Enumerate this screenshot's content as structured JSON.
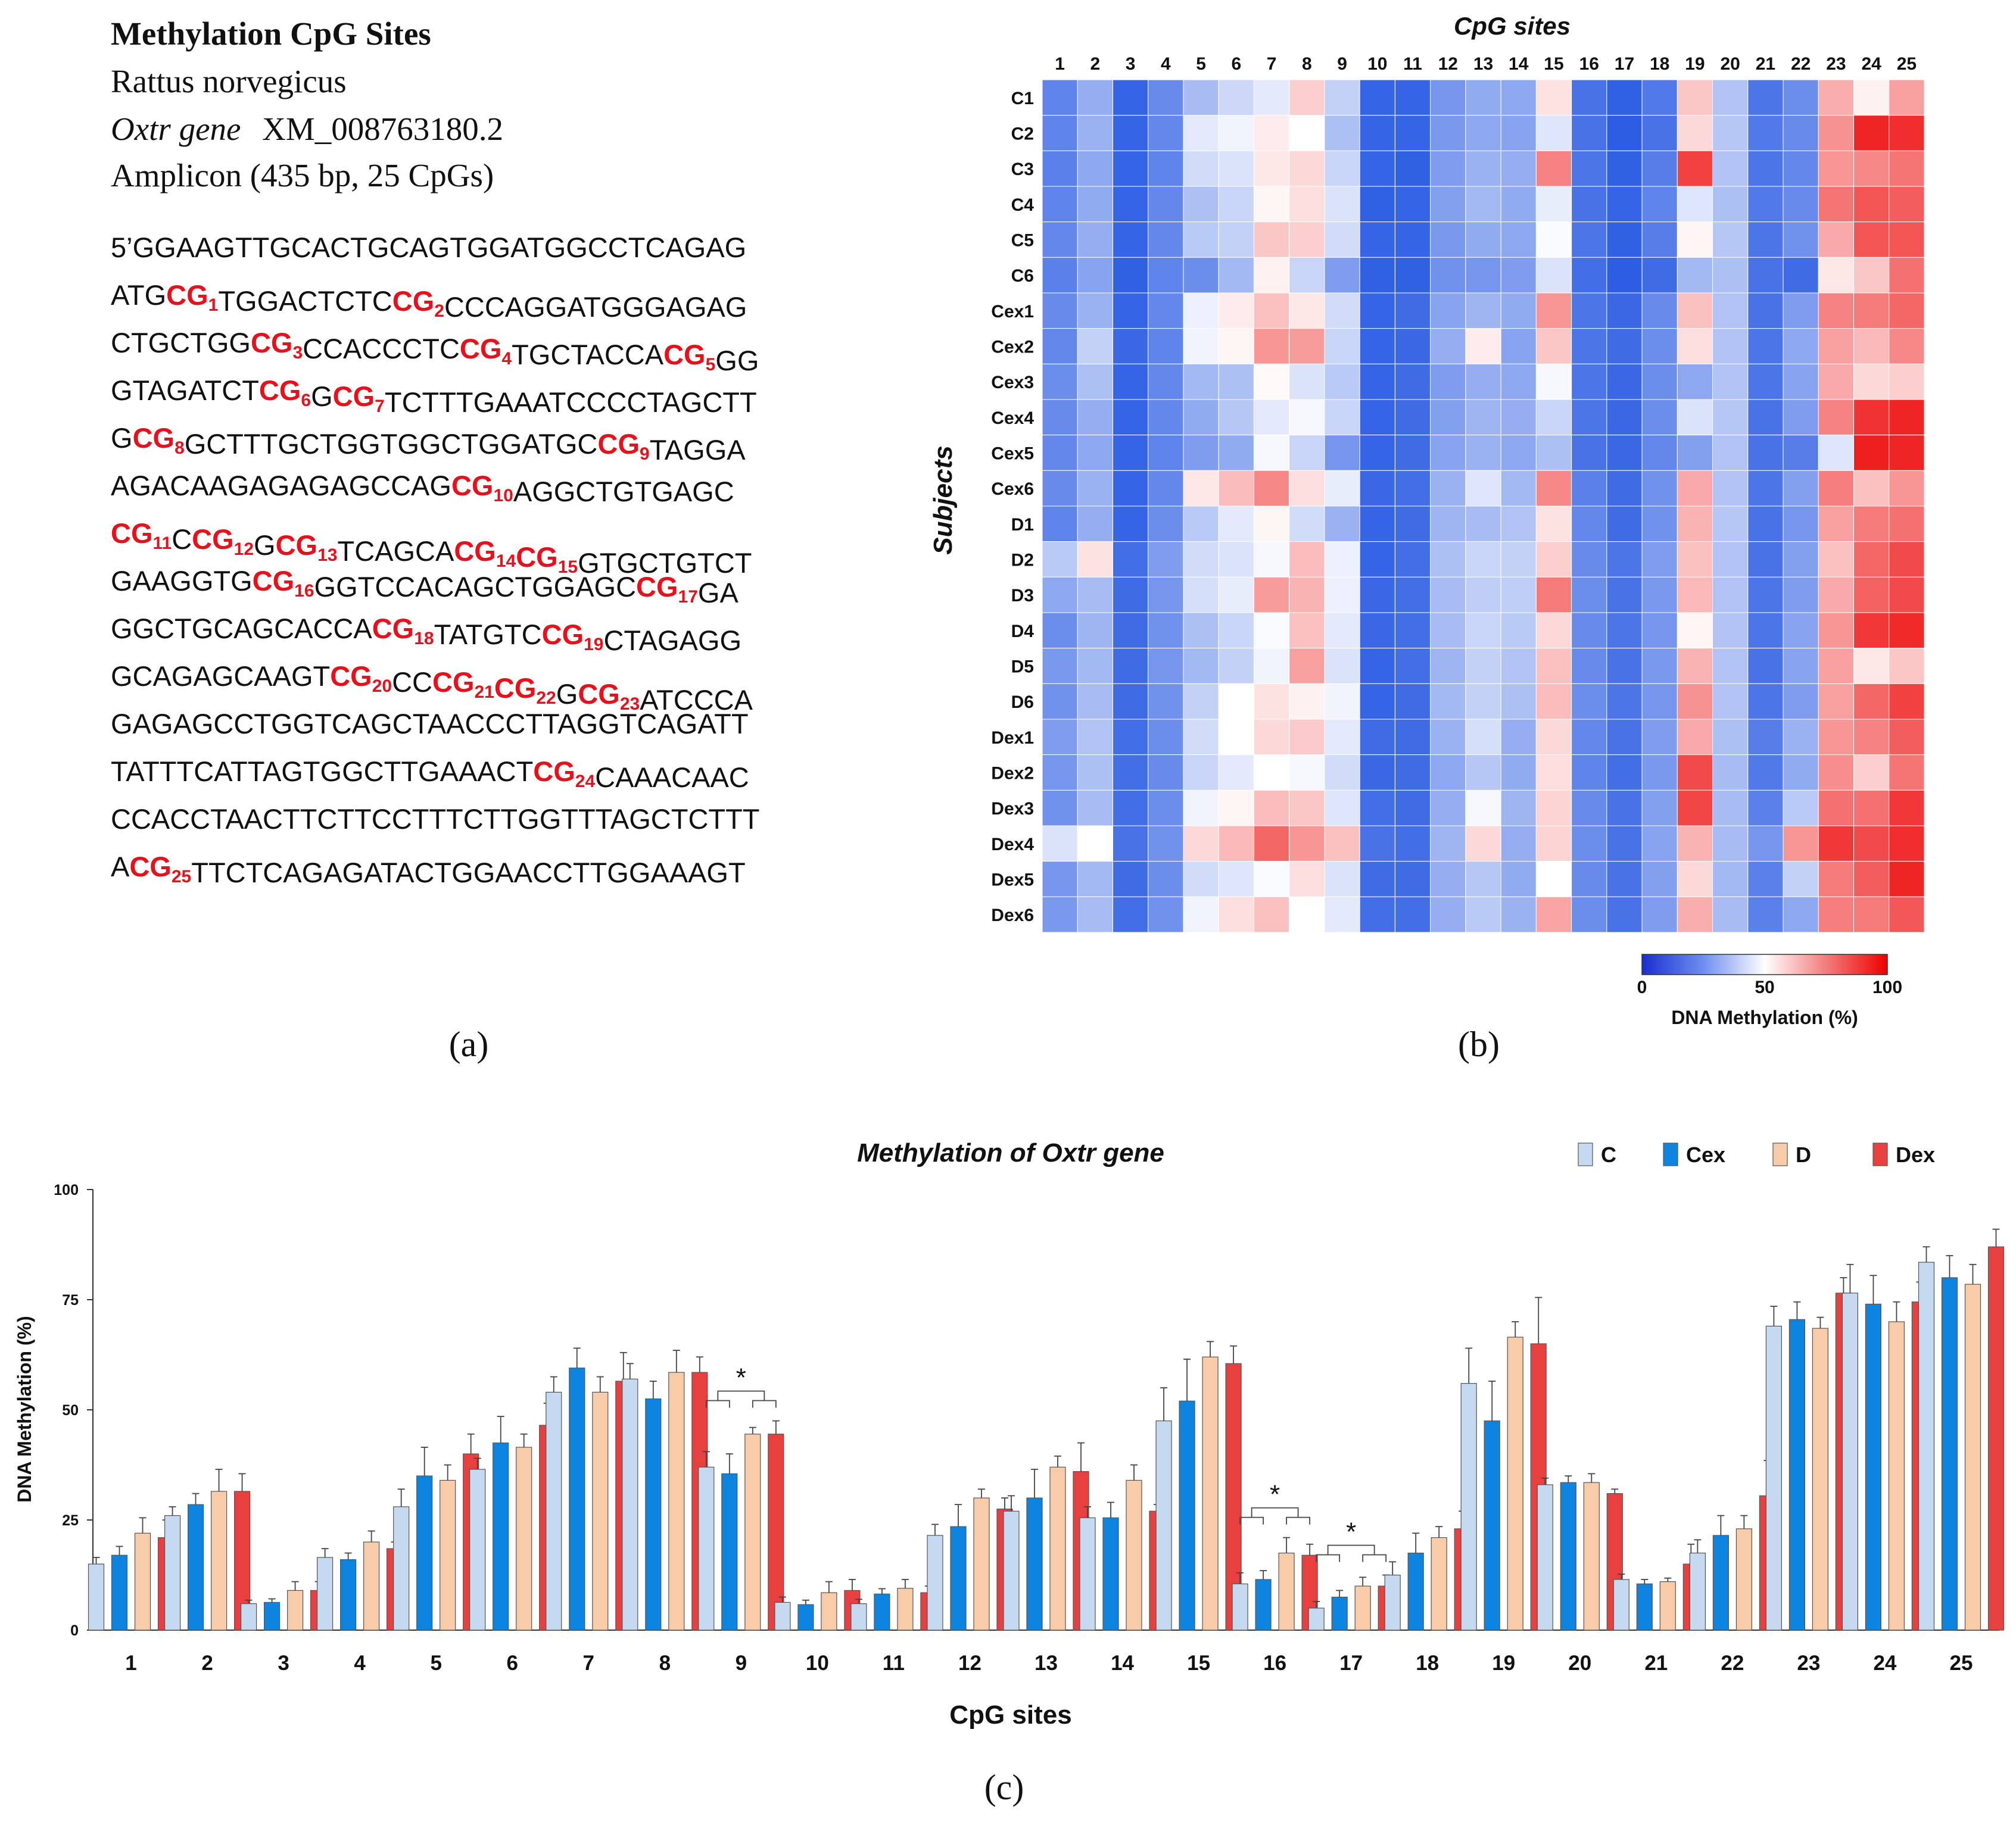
{
  "panel_a": {
    "title": "Methylation CpG Sites",
    "species": "Rattus norvegicus",
    "gene_italic": "Oxtr gene",
    "accession": "XM_008763180.2",
    "amplicon": "Amplicon (435 bp, 25 CpGs)",
    "caption": "(a)",
    "sequence_lines": [
      [
        {
          "t": "5’GGAAGTTGCACTGCAGTGGATGGCCTCAGAG"
        }
      ],
      [
        {
          "t": "ATG"
        },
        {
          "cg": "CG",
          "n": "1"
        },
        {
          "t": "TGGACTCTC"
        },
        {
          "cg": "CG",
          "n": "2"
        },
        {
          "t": "CCCAGGATGGGAGAG"
        }
      ],
      [
        {
          "t": "CTGCTGG"
        },
        {
          "cg": "CG",
          "n": "3"
        },
        {
          "t": "CCACCCTC"
        },
        {
          "cg": "CG",
          "n": "4"
        },
        {
          "t": "TGCTACCA"
        },
        {
          "cg": "CG",
          "n": "5"
        },
        {
          "t": "GG"
        }
      ],
      [
        {
          "t": "GTAGATCT"
        },
        {
          "cg": "CG",
          "n": "6"
        },
        {
          "t": "G"
        },
        {
          "cg": "CG",
          "n": "7"
        },
        {
          "t": "TCTTTGAAATCCCCTAGCTT"
        }
      ],
      [
        {
          "t": "G"
        },
        {
          "cg": "CG",
          "n": "8"
        },
        {
          "t": "GCTTTGCTGGTGGCTGGATGC"
        },
        {
          "cg": "CG",
          "n": "9"
        },
        {
          "t": "TAGGA"
        }
      ],
      [
        {
          "t": "AGACAAGAGAGAGCCAG"
        },
        {
          "cg": "CG",
          "n": "10"
        },
        {
          "t": "AGGCTGTGAGC"
        }
      ],
      [
        {
          "cg": "CG",
          "n": "11"
        },
        {
          "t": "C"
        },
        {
          "cg": "CG",
          "n": "12"
        },
        {
          "t": "G"
        },
        {
          "cg": "CG",
          "n": "13"
        },
        {
          "t": "TCAGCA"
        },
        {
          "cg": "CG",
          "n": "14"
        },
        {
          "cg": "CG",
          "n": "15"
        },
        {
          "t": "GTGCTGTCT"
        }
      ],
      [
        {
          "t": "GAAGGTG"
        },
        {
          "cg": "CG",
          "n": "16"
        },
        {
          "t": "GGTCCACAGCTGGAGC"
        },
        {
          "cg": "CG",
          "n": "17"
        },
        {
          "t": "GA"
        }
      ],
      [
        {
          "t": "GGCTGCAGCACCA"
        },
        {
          "cg": "CG",
          "n": "18"
        },
        {
          "t": "TATGTC"
        },
        {
          "cg": "CG",
          "n": "19"
        },
        {
          "t": "CTAGAGG"
        }
      ],
      [
        {
          "t": "GCAGAGCAAGT"
        },
        {
          "cg": "CG",
          "n": "20"
        },
        {
          "t": "CC"
        },
        {
          "cg": "CG",
          "n": "21"
        },
        {
          "cg": "CG",
          "n": "22"
        },
        {
          "t": "G"
        },
        {
          "cg": "CG",
          "n": "23"
        },
        {
          "t": "ATCCCA"
        }
      ],
      [
        {
          "t": "GAGAGCCTGGTCAGCTAACCCTTAGGTCAGATT"
        }
      ],
      [
        {
          "t": "TATTTCATTAGTGGCTTGAAACT"
        },
        {
          "cg": "CG",
          "n": "24"
        },
        {
          "t": "CAAACAAC"
        }
      ],
      [
        {
          "t": "CCACCTAACTTCTTCCTTTCTTGGTTTAGCTCTTT"
        }
      ],
      [
        {
          "t": "A"
        },
        {
          "cg": "CG",
          "n": "25"
        },
        {
          "t": "TTCTCAGAGATACTGGAACCTTGGAAAGT"
        }
      ]
    ]
  },
  "chart_data": [
    {
      "type": "heatmap",
      "caption": "(b)",
      "title": "CpG sites",
      "ylabel": "Subjects",
      "colorbar_label": "DNA Methylation (%)",
      "colorbar_ticks": [
        "0",
        "50",
        "100"
      ],
      "color_scale": {
        "low": "#1a4fe0",
        "mid": "#ffffff",
        "high": "#ee1111",
        "range": [
          0,
          100
        ]
      },
      "columns": [
        "1",
        "2",
        "3",
        "4",
        "5",
        "6",
        "7",
        "8",
        "9",
        "10",
        "11",
        "12",
        "13",
        "14",
        "15",
        "16",
        "17",
        "18",
        "19",
        "20",
        "21",
        "22",
        "23",
        "24",
        "25"
      ],
      "rows": [
        "C1",
        "C2",
        "C3",
        "C4",
        "C5",
        "C6",
        "Cex1",
        "Cex2",
        "Cex3",
        "Cex4",
        "Cex5",
        "Cex6",
        "D1",
        "D2",
        "D3",
        "D4",
        "D5",
        "D6",
        "Dex1",
        "Dex2",
        "Dex3",
        "Dex4",
        "Dex5",
        "Dex6"
      ],
      "values": [
        [
          15,
          27,
          6,
          17,
          31,
          39,
          44,
          60,
          37,
          6,
          6,
          20,
          26,
          25,
          56,
          10,
          5,
          12,
          62,
          33,
          11,
          18,
          67,
          53,
          70
        ],
        [
          15,
          28,
          6,
          16,
          44,
          47,
          54,
          50,
          32,
          6,
          6,
          21,
          25,
          24,
          43,
          10,
          4,
          10,
          58,
          34,
          12,
          17,
          73,
          96,
          94
        ],
        [
          14,
          25,
          6,
          15,
          40,
          42,
          55,
          58,
          38,
          6,
          5,
          22,
          28,
          27,
          76,
          11,
          5,
          13,
          90,
          33,
          11,
          16,
          72,
          75,
          79
        ],
        [
          15,
          26,
          6,
          16,
          32,
          38,
          52,
          57,
          42,
          5,
          6,
          23,
          30,
          26,
          45,
          10,
          6,
          15,
          43,
          32,
          12,
          17,
          79,
          86,
          84
        ],
        [
          16,
          27,
          6,
          16,
          35,
          37,
          62,
          60,
          40,
          6,
          6,
          21,
          26,
          25,
          49,
          11,
          5,
          13,
          52,
          34,
          11,
          19,
          68,
          86,
          86
        ],
        [
          14,
          24,
          5,
          15,
          18,
          30,
          53,
          38,
          22,
          5,
          5,
          19,
          20,
          22,
          42,
          9,
          4,
          8,
          30,
          32,
          10,
          8,
          55,
          62,
          80
        ],
        [
          17,
          28,
          6,
          16,
          46,
          54,
          63,
          55,
          40,
          6,
          8,
          24,
          29,
          26,
          72,
          11,
          7,
          17,
          63,
          33,
          10,
          22,
          76,
          78,
          82
        ],
        [
          16,
          37,
          7,
          15,
          47,
          52,
          72,
          71,
          38,
          6,
          7,
          27,
          54,
          24,
          62,
          11,
          8,
          18,
          57,
          33,
          11,
          25,
          70,
          65,
          75
        ],
        [
          18,
          32,
          6,
          16,
          30,
          32,
          51,
          42,
          35,
          6,
          8,
          22,
          27,
          25,
          48,
          11,
          7,
          18,
          25,
          33,
          11,
          24,
          68,
          58,
          60
        ],
        [
          17,
          27,
          6,
          16,
          26,
          34,
          44,
          48,
          38,
          6,
          8,
          23,
          29,
          27,
          38,
          11,
          7,
          18,
          42,
          34,
          10,
          22,
          76,
          93,
          96
        ],
        [
          16,
          25,
          6,
          15,
          22,
          26,
          48,
          38,
          20,
          6,
          8,
          24,
          28,
          25,
          32,
          10,
          7,
          16,
          23,
          33,
          10,
          13,
          43,
          97,
          96
        ],
        [
          17,
          28,
          6,
          16,
          55,
          64,
          75,
          57,
          45,
          7,
          9,
          28,
          43,
          30,
          75,
          14,
          8,
          19,
          68,
          33,
          11,
          23,
          77,
          63,
          72
        ],
        [
          15,
          27,
          6,
          18,
          35,
          44,
          52,
          40,
          28,
          6,
          8,
          29,
          31,
          33,
          56,
          16,
          8,
          19,
          66,
          34,
          10,
          20,
          70,
          78,
          80
        ],
        [
          35,
          56,
          9,
          22,
          40,
          42,
          48,
          64,
          46,
          6,
          9,
          32,
          38,
          37,
          60,
          17,
          11,
          22,
          63,
          33,
          10,
          23,
          63,
          82,
          88
        ],
        [
          25,
          31,
          8,
          20,
          41,
          45,
          71,
          66,
          46,
          7,
          9,
          31,
          36,
          36,
          78,
          18,
          10,
          21,
          65,
          33,
          11,
          22,
          68,
          83,
          88
        ],
        [
          18,
          29,
          8,
          19,
          32,
          38,
          49,
          63,
          44,
          7,
          9,
          31,
          38,
          35,
          58,
          17,
          11,
          20,
          52,
          33,
          11,
          24,
          72,
          92,
          95
        ],
        [
          21,
          30,
          8,
          20,
          30,
          37,
          47,
          70,
          42,
          6,
          9,
          29,
          37,
          33,
          63,
          17,
          10,
          21,
          66,
          33,
          10,
          24,
          70,
          55,
          62
        ],
        [
          19,
          31,
          8,
          19,
          37,
          50,
          56,
          53,
          47,
          6,
          8,
          30,
          37,
          32,
          64,
          18,
          11,
          20,
          73,
          33,
          11,
          22,
          70,
          82,
          90
        ],
        [
          22,
          33,
          9,
          18,
          40,
          50,
          58,
          61,
          44,
          8,
          8,
          28,
          41,
          27,
          58,
          16,
          10,
          22,
          68,
          32,
          13,
          28,
          72,
          76,
          84
        ],
        [
          20,
          32,
          9,
          17,
          38,
          44,
          50,
          48,
          40,
          7,
          8,
          25,
          34,
          26,
          57,
          15,
          9,
          21,
          88,
          31,
          12,
          26,
          74,
          60,
          79
        ],
        [
          19,
          31,
          9,
          18,
          47,
          52,
          64,
          62,
          43,
          9,
          8,
          27,
          48,
          29,
          59,
          17,
          10,
          23,
          89,
          31,
          14,
          35,
          80,
          80,
          92
        ],
        [
          42,
          50,
          10,
          19,
          58,
          65,
          82,
          72,
          63,
          10,
          9,
          29,
          58,
          27,
          59,
          18,
          10,
          24,
          66,
          31,
          20,
          72,
          92,
          88,
          94
        ],
        [
          20,
          30,
          8,
          18,
          40,
          43,
          49,
          57,
          42,
          8,
          8,
          27,
          34,
          26,
          50,
          17,
          10,
          23,
          58,
          30,
          14,
          37,
          78,
          84,
          96
        ],
        [
          21,
          31,
          9,
          19,
          47,
          57,
          63,
          50,
          44,
          9,
          9,
          27,
          35,
          28,
          69,
          18,
          10,
          22,
          67,
          31,
          14,
          25,
          77,
          78,
          85
        ]
      ]
    },
    {
      "type": "bar",
      "caption": "(c)",
      "title": "Methylation of Oxtr gene",
      "xlabel": "CpG sites",
      "ylabel": "DNA Methylation (%)",
      "ylim": [
        0,
        100
      ],
      "yticks": [
        "0",
        "25",
        "50",
        "75",
        "100"
      ],
      "legend_position": "top-right",
      "categories": [
        "1",
        "2",
        "3",
        "4",
        "5",
        "6",
        "7",
        "8",
        "9",
        "10",
        "11",
        "12",
        "13",
        "14",
        "15",
        "16",
        "17",
        "18",
        "19",
        "20",
        "21",
        "22",
        "23",
        "24",
        "25"
      ],
      "series": [
        {
          "name": "C",
          "color": "#c5d9f1",
          "values": [
            15,
            26,
            6,
            16.5,
            28,
            36.5,
            54,
            57,
            37,
            6.3,
            6,
            21.5,
            27,
            25.5,
            47.5,
            10.5,
            5,
            12.5,
            56,
            33,
            11.5,
            17.5,
            69,
            76.5,
            83.5
          ],
          "errors": [
            1.5,
            2,
            0.8,
            2,
            4,
            2.5,
            3.5,
            3.5,
            3.5,
            1.2,
            1,
            2.5,
            3.5,
            2.5,
            7.5,
            2.5,
            1.5,
            3,
            8,
            1.5,
            1.2,
            3,
            4.5,
            6.5,
            3.5
          ]
        },
        {
          "name": "Cex",
          "color": "#0d84e0",
          "values": [
            17,
            28.5,
            6.3,
            16,
            35,
            42.5,
            59.5,
            52.5,
            35.5,
            5.8,
            8.2,
            23.5,
            30,
            25.5,
            52,
            11.5,
            7.5,
            17.5,
            47.5,
            33.5,
            10.5,
            21.5,
            70.5,
            74,
            80
          ],
          "errors": [
            2,
            2.5,
            0.8,
            1.5,
            6.5,
            6,
            4.5,
            4,
            4.5,
            1,
            1.2,
            5,
            6.5,
            3.5,
            9.5,
            2,
            1.5,
            4.5,
            9,
            1.5,
            1,
            4.5,
            4,
            6.5,
            5
          ]
        },
        {
          "name": "D",
          "color": "#f8cba9",
          "values": [
            22,
            31.5,
            9,
            20,
            34,
            41.5,
            54,
            58.5,
            44.5,
            8.5,
            9.5,
            30,
            37,
            34,
            62,
            17.5,
            10,
            21,
            66.5,
            33.5,
            11,
            23,
            68.5,
            70,
            78.5
          ],
          "errors": [
            3.5,
            5,
            2,
            2.5,
            3.5,
            3,
            3.5,
            5,
            1.5,
            2.5,
            2,
            2,
            2.5,
            3.5,
            3.5,
            3.5,
            2,
            2.5,
            3.5,
            2,
            0.8,
            3,
            2.5,
            4.5,
            4.5
          ]
        },
        {
          "name": "Dex",
          "color": "#e8403f",
          "values": [
            21,
            31.5,
            9,
            18.5,
            40,
            46.5,
            56.5,
            58.5,
            44.5,
            9,
            8.5,
            27.5,
            36,
            27,
            60.5,
            17,
            10,
            23,
            65,
            31,
            15,
            30.5,
            76.5,
            74.5,
            87
          ],
          "errors": [
            4,
            4,
            2,
            1.5,
            4.5,
            5,
            6.5,
            3.5,
            3,
            2.5,
            1.5,
            2.5,
            6.5,
            1.5,
            4,
            2.5,
            2.5,
            4,
            10.5,
            1,
            4.5,
            8,
            3.5,
            4.5,
            4
          ]
        }
      ],
      "significance": [
        {
          "site": "9",
          "label": "*"
        },
        {
          "site": "16",
          "label": "*"
        },
        {
          "site": "17",
          "label": "*"
        }
      ]
    }
  ]
}
